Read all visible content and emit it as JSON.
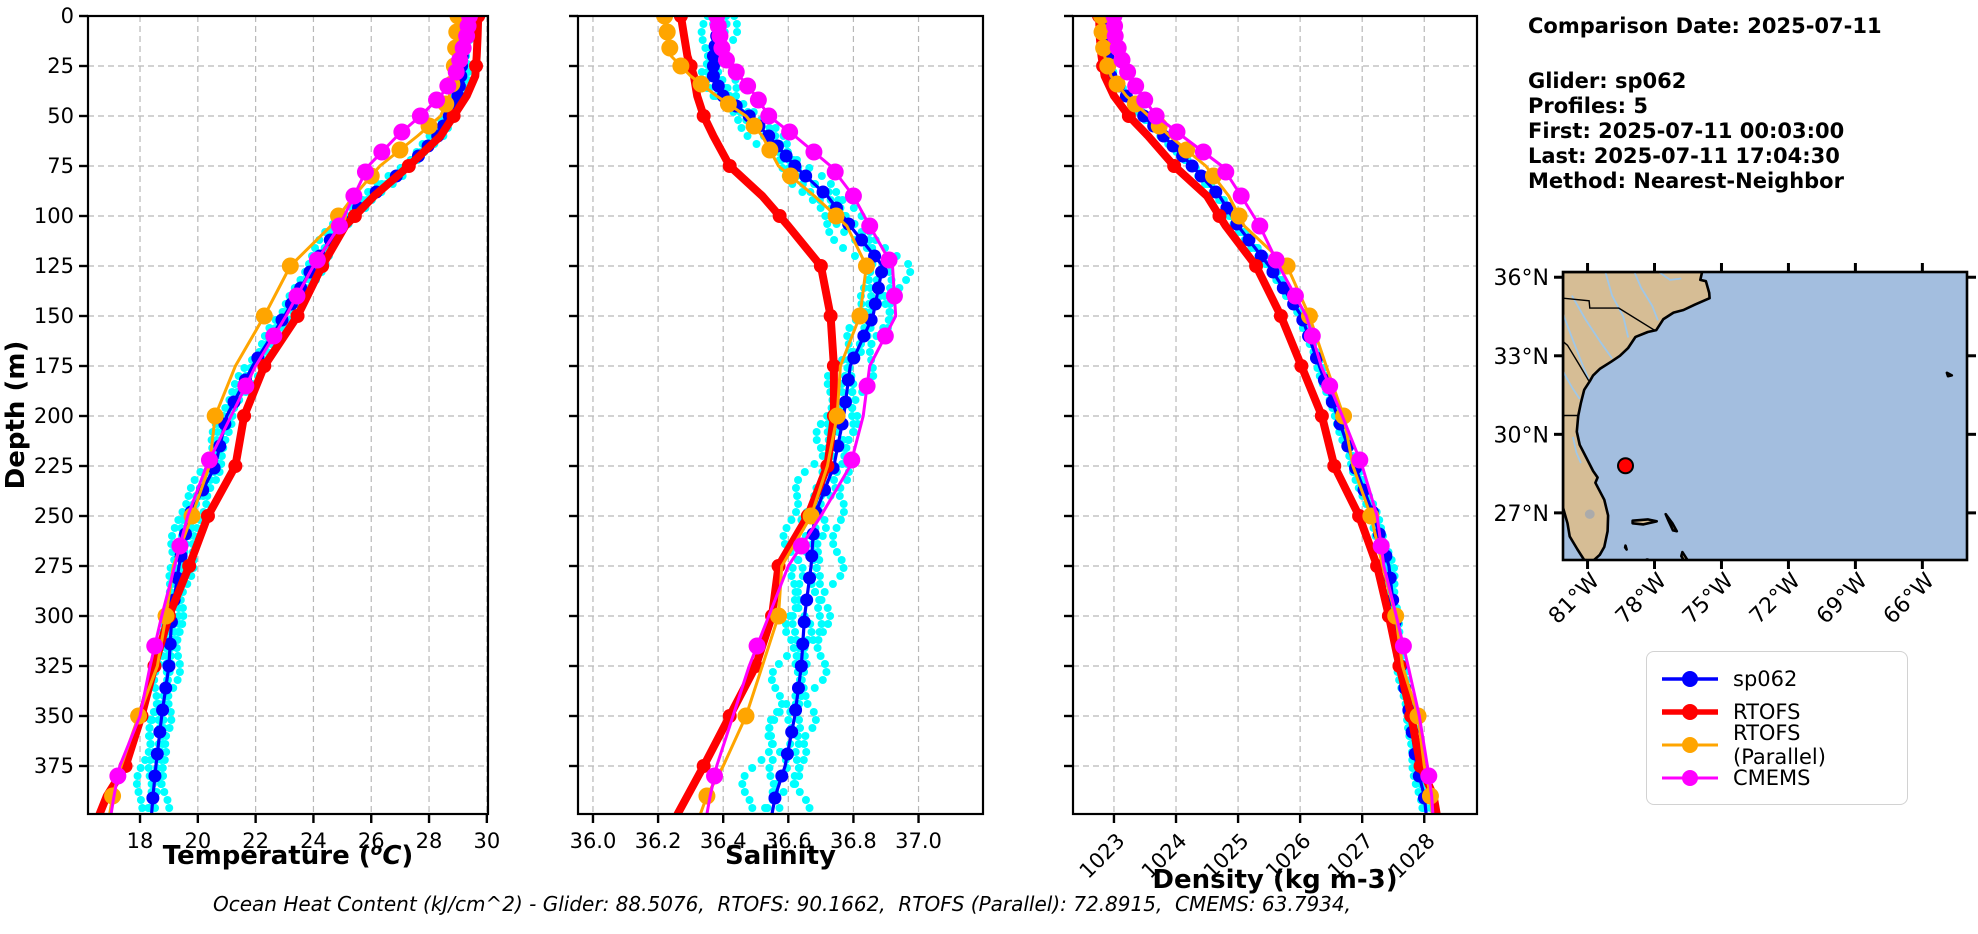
{
  "info": {
    "title": "Comparison Date: 2025-07-11",
    "glider": "Glider: sp062",
    "profiles": "Profiles: 5",
    "first": "First: 2025-07-11 00:03:00",
    "last": "Last: 2025-07-11 17:04:30",
    "method": "Method: Nearest-Neighbor"
  },
  "caption": "Ocean Heat Content (kJ/cm^2) - Glider: 88.5076,  RTOFS: 90.1662,  RTOFS (Parallel): 72.8915,  CMEMS: 63.7934,",
  "legend": {
    "items": [
      {
        "label": "sp062",
        "color": "#0000ff"
      },
      {
        "label": "RTOFS",
        "color": "#ff0000"
      },
      {
        "label": "RTOFS (Parallel)",
        "color": "#ffa500"
      },
      {
        "label": "CMEMS",
        "color": "#ff00ff"
      }
    ]
  },
  "colors": {
    "glider_scatter": "#00ffff",
    "grid": "#b8b8b8",
    "spine": "#000000"
  },
  "chart_data": {
    "type": "line",
    "title": "",
    "ylabel": "Depth (m)",
    "ylim": [
      0,
      399
    ],
    "yticks": [
      0,
      25,
      50,
      75,
      100,
      125,
      150,
      175,
      200,
      225,
      250,
      275,
      300,
      325,
      350,
      375
    ],
    "grid": true,
    "legend_position": "lower right (outside, figure)",
    "depths": [
      0,
      10,
      20,
      30,
      40,
      50,
      60,
      75,
      90,
      105,
      125,
      150,
      175,
      200,
      225,
      250,
      275,
      300,
      325,
      350,
      375,
      390,
      399
    ],
    "series_names": [
      "sp062",
      "RTOFS",
      "RTOFS (Parallel)",
      "CMEMS"
    ],
    "panels": [
      {
        "xlabel": "Temperature (°C)",
        "xlabel_render": {
          "pre": "Temperature (",
          "sup": "o",
          "unit": "C",
          "post": ")"
        },
        "xlim": [
          16.2,
          30.04
        ],
        "xticks": [
          18,
          20,
          22,
          24,
          26,
          28,
          30
        ],
        "xtick_labels": [
          "18",
          "20",
          "22",
          "24",
          "26",
          "28",
          "30"
        ],
        "rotate_xticks": false,
        "series": [
          {
            "name": "sp062",
            "values": [
              29.2,
              29.2,
              29.15,
              29.1,
              29.0,
              28.7,
              28.3,
              27.3,
              26.0,
              24.9,
              24.0,
              23.0,
              21.9,
              21.0,
              20.6,
              19.7,
              19.35,
              19.1,
              19.0,
              18.75,
              18.55,
              18.45,
              18.4
            ]
          },
          {
            "name": "RTOFS",
            "values": [
              29.7,
              29.68,
              29.65,
              29.6,
              29.3,
              28.85,
              28.4,
              27.3,
              26.1,
              25.1,
              24.3,
              23.45,
              22.3,
              21.6,
              21.3,
              20.35,
              19.7,
              19.0,
              18.5,
              18.05,
              17.5,
              16.85,
              16.6
            ]
          },
          {
            "name": "RTOFS (Parallel)",
            "values": [
              29.0,
              28.95,
              28.9,
              28.85,
              28.7,
              28.4,
              27.6,
              26.3,
              25.4,
              24.6,
              23.2,
              22.3,
              21.3,
              20.6,
              20.4,
              19.8,
              19.15,
              18.9,
              18.6,
              17.95,
              17.35,
              17.05,
              16.95
            ]
          },
          {
            "name": "CMEMS",
            "values": [
              29.4,
              29.3,
              29.1,
              28.9,
              28.4,
              27.7,
              26.9,
              25.9,
              25.4,
              24.9,
              24.0,
              23.05,
              22.0,
              21.15,
              20.3,
              19.65,
              19.2,
              18.75,
              18.35,
              18.0,
              17.3,
              17.1,
              17.0
            ]
          }
        ],
        "scatter": {
          "spread": 0.17,
          "growth": 1.1
        }
      },
      {
        "xlabel": "Salinity",
        "xlim": [
          35.954,
          37.198
        ],
        "xticks": [
          36.0,
          36.2,
          36.4,
          36.6,
          36.8,
          37.0
        ],
        "xtick_labels": [
          "36.0",
          "36.2",
          "36.4",
          "36.6",
          "36.8",
          "37.0"
        ],
        "rotate_xticks": false,
        "series": [
          {
            "name": "sp062",
            "values": [
              36.38,
              36.38,
              36.37,
              36.37,
              36.4,
              36.48,
              36.54,
              36.62,
              36.72,
              36.79,
              36.89,
              36.86,
              36.79,
              36.77,
              36.74,
              36.68,
              36.67,
              36.65,
              36.64,
              36.62,
              36.59,
              36.56,
              36.55
            ]
          },
          {
            "name": "RTOFS",
            "values": [
              36.27,
              36.28,
              36.29,
              36.31,
              36.32,
              36.34,
              36.37,
              36.42,
              36.52,
              36.6,
              36.7,
              36.73,
              36.74,
              36.74,
              36.72,
              36.66,
              36.57,
              36.55,
              36.5,
              36.42,
              36.34,
              36.29,
              36.26
            ]
          },
          {
            "name": "RTOFS (Parallel)",
            "values": [
              36.22,
              36.23,
              36.24,
              36.3,
              36.38,
              36.47,
              36.52,
              36.57,
              36.68,
              36.78,
              36.84,
              36.82,
              36.76,
              36.75,
              36.72,
              36.67,
              36.58,
              36.57,
              36.52,
              36.47,
              36.4,
              36.35,
              36.33
            ]
          },
          {
            "name": "CMEMS",
            "values": [
              36.38,
              36.39,
              36.4,
              36.45,
              36.5,
              36.54,
              36.62,
              36.73,
              36.8,
              36.85,
              36.92,
              36.93,
              36.85,
              36.83,
              36.79,
              36.7,
              36.6,
              36.54,
              36.48,
              36.43,
              36.38,
              36.36,
              36.35
            ]
          }
        ],
        "scatter": {
          "spread": 0.042,
          "growth": 0.6
        }
      },
      {
        "xlabel": "Density (kg m-3)",
        "xlim": [
          1022.34,
          1028.85
        ],
        "xticks": [
          1023,
          1024,
          1025,
          1026,
          1027,
          1028
        ],
        "xtick_labels": [
          "1023",
          "1024",
          "1025",
          "1026",
          "1027",
          "1028"
        ],
        "rotate_xticks": true,
        "series": [
          {
            "name": "sp062",
            "values": [
              1022.85,
              1022.86,
              1022.9,
              1022.95,
              1023.2,
              1023.48,
              1023.8,
              1024.26,
              1024.7,
              1025.0,
              1025.5,
              1026.02,
              1026.31,
              1026.6,
              1026.88,
              1027.19,
              1027.43,
              1027.52,
              1027.62,
              1027.77,
              1027.88,
              1028.0,
              1028.03
            ]
          },
          {
            "name": "RTOFS",
            "values": [
              1022.76,
              1022.77,
              1022.8,
              1022.85,
              1023.0,
              1023.24,
              1023.55,
              1023.97,
              1024.5,
              1024.8,
              1025.29,
              1025.69,
              1026.02,
              1026.35,
              1026.55,
              1026.95,
              1027.24,
              1027.43,
              1027.6,
              1027.79,
              1027.94,
              1028.15,
              1028.2
            ]
          },
          {
            "name": "RTOFS (Parallel)",
            "values": [
              1022.8,
              1022.81,
              1022.85,
              1022.95,
              1023.2,
              1023.56,
              1023.9,
              1024.48,
              1024.85,
              1025.1,
              1025.79,
              1026.15,
              1026.42,
              1026.7,
              1026.85,
              1027.14,
              1027.33,
              1027.54,
              1027.65,
              1027.9,
              1028.0,
              1028.1,
              1028.13
            ]
          },
          {
            "name": "CMEMS",
            "values": [
              1023.0,
              1023.02,
              1023.1,
              1023.25,
              1023.45,
              1023.68,
              1024.1,
              1024.74,
              1025.05,
              1025.35,
              1025.66,
              1026.1,
              1026.34,
              1026.68,
              1027.0,
              1027.24,
              1027.35,
              1027.55,
              1027.74,
              1027.92,
              1028.05,
              1028.12,
              1028.14
            ]
          }
        ],
        "scatter": {
          "spread": 0.035,
          "growth": 0.5
        }
      }
    ],
    "glider_scatter": {
      "profile_count": 5,
      "offsets": [
        -1.2,
        -0.6,
        0,
        0.6,
        1.2
      ]
    }
  },
  "map": {
    "extent": {
      "lon_min": -82.1,
      "lon_max": -64.0,
      "lat_min": 25.2,
      "lat_max": 36.2
    },
    "lat_ticks": [
      36,
      33,
      30,
      27
    ],
    "lat_tick_labels": [
      "36°N",
      "33°N",
      "30°N",
      "27°N"
    ],
    "lon_ticks": [
      -81,
      -78,
      -75,
      -72,
      -69,
      -66
    ],
    "lon_tick_labels": [
      "81°W",
      "78°W",
      "75°W",
      "72°W",
      "69°W",
      "66°W"
    ],
    "marker": {
      "lon": -79.3,
      "lat": 28.8,
      "color": "#ff0000"
    },
    "land_color": "#d6bd95",
    "ocean_color": "#a3bedf",
    "river_color": "#9fc7e8",
    "lake_color": "#ababab",
    "land": [
      [
        [
          -82.1,
          36.2
        ],
        [
          -75.87,
          36.2
        ],
        [
          -75.95,
          35.9
        ],
        [
          -75.7,
          35.85
        ],
        [
          -75.55,
          35.4
        ],
        [
          -75.53,
          35.2
        ],
        [
          -76.2,
          34.95
        ],
        [
          -76.7,
          34.75
        ],
        [
          -77.15,
          34.65
        ],
        [
          -77.6,
          34.4
        ],
        [
          -77.92,
          33.98
        ],
        [
          -78.3,
          33.91
        ],
        [
          -78.85,
          33.72
        ],
        [
          -79.18,
          33.3
        ],
        [
          -79.55,
          33.0
        ],
        [
          -79.95,
          32.77
        ],
        [
          -80.45,
          32.5
        ],
        [
          -80.75,
          32.25
        ],
        [
          -80.9,
          32.03
        ],
        [
          -81.15,
          31.7
        ],
        [
          -81.3,
          31.2
        ],
        [
          -81.42,
          30.7
        ],
        [
          -81.48,
          30.1
        ],
        [
          -81.35,
          29.6
        ],
        [
          -81.05,
          29.1
        ],
        [
          -80.75,
          28.6
        ],
        [
          -80.55,
          28.35
        ],
        [
          -80.65,
          28.15
        ],
        [
          -80.25,
          27.5
        ],
        [
          -80.08,
          26.9
        ],
        [
          -80.1,
          26.3
        ],
        [
          -80.25,
          25.7
        ],
        [
          -80.45,
          25.4
        ],
        [
          -80.75,
          25.17
        ],
        [
          -81.15,
          25.2
        ],
        [
          -81.45,
          25.6
        ],
        [
          -81.8,
          26.1
        ],
        [
          -81.9,
          26.6
        ],
        [
          -82.1,
          27.2
        ]
      ],
      [
        [
          -78.98,
          26.7
        ],
        [
          -78.3,
          26.75
        ],
        [
          -77.9,
          26.68
        ],
        [
          -78.5,
          26.56
        ],
        [
          -78.98,
          26.6
        ]
      ],
      [
        [
          -77.5,
          26.95
        ],
        [
          -77.2,
          26.6
        ],
        [
          -77.0,
          26.3
        ],
        [
          -77.17,
          26.33
        ],
        [
          -77.4,
          26.75
        ]
      ],
      [
        [
          -78.35,
          25.22
        ],
        [
          -78.2,
          24.9
        ],
        [
          -77.95,
          24.4
        ],
        [
          -78.0,
          25.0
        ],
        [
          -78.3,
          25.22
        ]
      ],
      [
        [
          -76.75,
          25.5
        ],
        [
          -76.3,
          24.9
        ],
        [
          -76.45,
          24.85
        ],
        [
          -76.8,
          25.35
        ]
      ],
      [
        [
          -77.5,
          25.1
        ],
        [
          -77.25,
          25.0
        ],
        [
          -77.35,
          25.12
        ]
      ],
      [
        [
          -79.3,
          25.75
        ],
        [
          -79.25,
          25.6
        ],
        [
          -79.32,
          25.68
        ]
      ],
      [
        [
          -64.9,
          32.35
        ],
        [
          -64.68,
          32.25
        ],
        [
          -64.85,
          32.22
        ]
      ]
    ],
    "rivers": [
      [
        [
          -78.9,
          36.2
        ],
        [
          -78.6,
          35.6
        ],
        [
          -78.1,
          34.9
        ],
        [
          -77.85,
          34.35
        ]
      ],
      [
        [
          -80.2,
          36.2
        ],
        [
          -79.9,
          35.3
        ],
        [
          -79.4,
          34.5
        ],
        [
          -79.18,
          33.7
        ]
      ],
      [
        [
          -81.7,
          35.3
        ],
        [
          -81.1,
          34.4
        ],
        [
          -80.4,
          33.5
        ],
        [
          -79.9,
          32.9
        ]
      ],
      [
        [
          -82.1,
          34.6
        ],
        [
          -81.7,
          33.7
        ],
        [
          -81.2,
          32.6
        ],
        [
          -80.95,
          32.1
        ]
      ],
      [
        [
          -82.1,
          32.4
        ],
        [
          -81.7,
          31.8
        ],
        [
          -81.35,
          31.35
        ]
      ],
      [
        [
          -81.65,
          29.9
        ],
        [
          -81.5,
          29.3
        ],
        [
          -81.3,
          28.9
        ]
      ],
      [
        [
          -77.8,
          36.2
        ],
        [
          -77.3,
          35.9
        ],
        [
          -76.8,
          35.95
        ]
      ]
    ],
    "borders": [
      [
        [
          -77.95,
          33.95
        ],
        [
          -79.6,
          34.82
        ],
        [
          -80.9,
          34.82
        ],
        [
          -80.93,
          35.1
        ],
        [
          -82.1,
          35.2
        ]
      ],
      [
        [
          -80.95,
          32.05
        ],
        [
          -81.4,
          32.7
        ],
        [
          -81.9,
          33.4
        ],
        [
          -82.1,
          33.55
        ]
      ],
      [
        [
          -81.45,
          30.72
        ],
        [
          -82.05,
          30.72
        ],
        [
          -82.1,
          30.6
        ]
      ]
    ],
    "lake": {
      "lon": -80.9,
      "lat": 26.95,
      "rlon": 0.22,
      "rlat": 0.18
    }
  }
}
